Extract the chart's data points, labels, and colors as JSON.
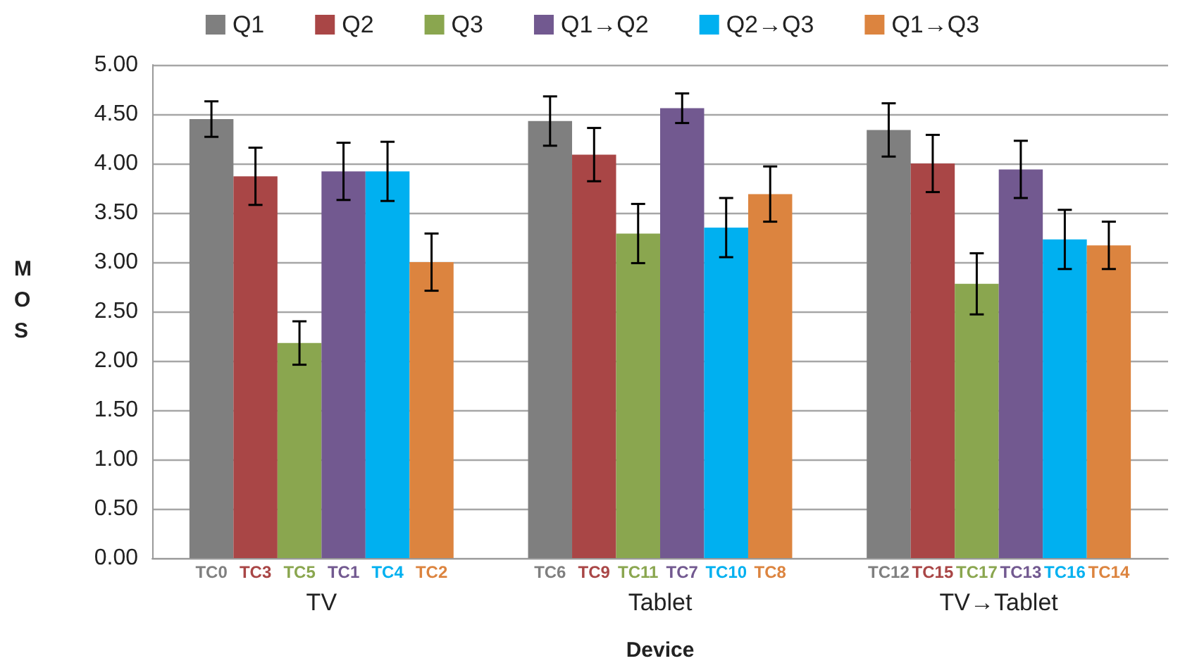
{
  "chart_data": {
    "type": "bar",
    "xlabel": "Device",
    "ylabel": "MOS",
    "categories": [
      "TV",
      "Tablet",
      "TV→Tablet"
    ],
    "series": [
      {
        "name": "Q1",
        "color": "#7f7f7f",
        "values": [
          4.45,
          4.43,
          4.34
        ],
        "errors": [
          0.18,
          0.25,
          0.27
        ],
        "value_labels": [
          "TC0",
          "TC6",
          "TC12"
        ]
      },
      {
        "name": "Q2",
        "color": "#a94646",
        "values": [
          3.87,
          4.09,
          4.0
        ],
        "errors": [
          0.29,
          0.27,
          0.29
        ],
        "value_labels": [
          "TC3",
          "TC9",
          "TC15"
        ]
      },
      {
        "name": "Q3",
        "color": "#8aa64f",
        "values": [
          2.18,
          3.29,
          2.78
        ],
        "errors": [
          0.22,
          0.3,
          0.31
        ],
        "value_labels": [
          "TC5",
          "TC11",
          "TC17"
        ]
      },
      {
        "name": "Q1→Q2",
        "color": "#725990",
        "values": [
          3.92,
          4.56,
          3.94
        ],
        "errors": [
          0.29,
          0.15,
          0.29
        ],
        "value_labels": [
          "TC1",
          "TC7",
          "TC13"
        ]
      },
      {
        "name": "Q2→Q3",
        "color": "#00b0f0",
        "values": [
          3.92,
          3.35,
          3.23
        ],
        "errors": [
          0.3,
          0.3,
          0.3
        ],
        "value_labels": [
          "TC4",
          "TC10",
          "TC16"
        ]
      },
      {
        "name": "Q1→Q3",
        "color": "#dc843f",
        "values": [
          3.0,
          3.69,
          3.17
        ],
        "errors": [
          0.29,
          0.28,
          0.24
        ],
        "value_labels": [
          "TC2",
          "TC8",
          "TC14"
        ]
      }
    ],
    "ylim": [
      0,
      5
    ],
    "yticks": [
      {
        "value": 0,
        "label": "0.00"
      },
      {
        "value": 0.5,
        "label": "0.50"
      },
      {
        "value": 1,
        "label": "1.00"
      },
      {
        "value": 1.5,
        "label": "1.50"
      },
      {
        "value": 2,
        "label": "2.00"
      },
      {
        "value": 2.5,
        "label": "2.50"
      },
      {
        "value": 3,
        "label": "3.00"
      },
      {
        "value": 3.5,
        "label": "3.50"
      },
      {
        "value": 4,
        "label": "4.00"
      },
      {
        "value": 4.5,
        "label": "4.50"
      },
      {
        "value": 5,
        "label": "5.00"
      }
    ],
    "grid": "y",
    "legend": "top"
  }
}
